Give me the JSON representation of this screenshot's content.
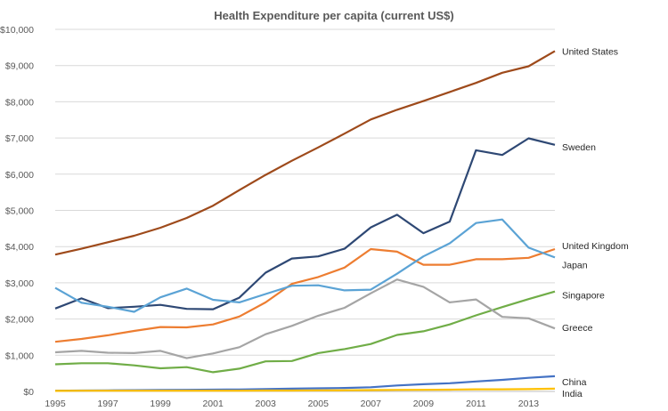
{
  "chart_data": {
    "type": "line",
    "title": "Health Expenditure per capita (current US$)",
    "xlabel": "",
    "ylabel": "",
    "x": [
      1995,
      1996,
      1997,
      1998,
      1999,
      2000,
      2001,
      2002,
      2003,
      2004,
      2005,
      2006,
      2007,
      2008,
      2009,
      2010,
      2011,
      2012,
      2013,
      2014
    ],
    "x_tick_labels": [
      "1995",
      "1997",
      "1999",
      "2001",
      "2003",
      "2005",
      "2007",
      "2009",
      "2011",
      "2013"
    ],
    "y_tick_labels": [
      "$0",
      "$1,000",
      "$2,000",
      "$3,000",
      "$4,000",
      "$5,000",
      "$6,000",
      "$7,000",
      "$8,000",
      "$9,000",
      "$10,000"
    ],
    "ylim": [
      0,
      10000
    ],
    "grid": true,
    "legend": "labels at line ends (right)",
    "series": [
      {
        "name": "United States",
        "color": "#9E4A1B",
        "values": [
          3780,
          3940,
          4120,
          4300,
          4520,
          4790,
          5130,
          5560,
          5980,
          6370,
          6740,
          7120,
          7510,
          7780,
          8020,
          8270,
          8520,
          8800,
          8980,
          9400
        ]
      },
      {
        "name": "Sweden",
        "color": "#2E4874",
        "values": [
          2290,
          2570,
          2300,
          2340,
          2390,
          2280,
          2270,
          2590,
          3280,
          3670,
          3730,
          3940,
          4530,
          4880,
          4370,
          4690,
          6660,
          6530,
          6990,
          6810
        ]
      },
      {
        "name": "United Kingdom",
        "color": "#ED7D31",
        "values": [
          1370,
          1450,
          1550,
          1670,
          1780,
          1770,
          1850,
          2070,
          2460,
          2970,
          3160,
          3420,
          3930,
          3860,
          3500,
          3500,
          3650,
          3650,
          3690,
          3930
        ]
      },
      {
        "name": "Japan",
        "color": "#5BA3D5",
        "values": [
          2860,
          2450,
          2340,
          2200,
          2600,
          2840,
          2530,
          2460,
          2690,
          2920,
          2930,
          2790,
          2810,
          3250,
          3730,
          4090,
          4650,
          4750,
          3970,
          3700
        ]
      },
      {
        "name": "Singapore",
        "color": "#70AD47",
        "values": [
          750,
          780,
          780,
          720,
          640,
          670,
          530,
          630,
          830,
          840,
          1060,
          1170,
          1310,
          1560,
          1660,
          1850,
          2100,
          2330,
          2550,
          2760
        ]
      },
      {
        "name": "Greece",
        "color": "#A5A5A5",
        "values": [
          1080,
          1120,
          1070,
          1060,
          1120,
          920,
          1050,
          1220,
          1580,
          1810,
          2090,
          2310,
          2710,
          3090,
          2890,
          2460,
          2540,
          2060,
          2020,
          1740
        ]
      },
      {
        "name": "China",
        "color": "#4472C4",
        "values": [
          20,
          25,
          30,
          35,
          40,
          45,
          50,
          55,
          65,
          75,
          85,
          95,
          115,
          165,
          200,
          225,
          275,
          320,
          375,
          420
        ]
      },
      {
        "name": "India",
        "color": "#FFC000",
        "values": [
          15,
          20,
          20,
          20,
          20,
          20,
          20,
          20,
          25,
          25,
          30,
          32,
          38,
          42,
          45,
          50,
          58,
          60,
          65,
          75
        ]
      }
    ]
  }
}
